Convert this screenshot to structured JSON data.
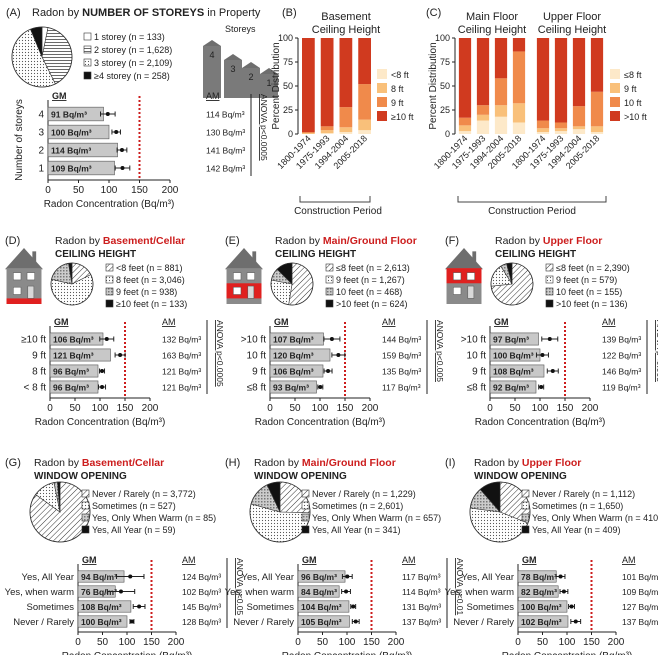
{
  "colors": {
    "red": "#cc1d1d",
    "gm_bar": "#c8c8c8",
    "house": "#6e6e6e",
    "refline": "#cc1d1d"
  },
  "panelA": {
    "label": "(A)",
    "title_pre": "Radon by ",
    "title_bold": "NUMBER OF STOREYS",
    "title_post": " in Property",
    "storeys_label": "Storeys",
    "legend": [
      "1 storey (n = 133)",
      "2 storey (n = 1,628)",
      "3 storey (n = 2,109)",
      "≥4 storey (n = 258)"
    ],
    "pie": [
      133,
      1628,
      2109,
      258
    ],
    "gm_header": "GM",
    "am_header": "AM",
    "anova": "ANOVA p<0.0005",
    "ylabel": "Number of storeys",
    "xlabel": "Radon Concentration (Bq/m³)",
    "ticks": [
      "0",
      "50",
      "100",
      "150",
      "200"
    ],
    "rows": [
      {
        "cat": "4",
        "gm": 91,
        "gm_label": "91 Bq/m³",
        "am": "114 Bq/m³",
        "err": 12
      },
      {
        "cat": "3",
        "gm": 100,
        "gm_label": "100 Bq/m³",
        "am": "130 Bq/m³",
        "err": 7
      },
      {
        "cat": "2",
        "gm": 114,
        "gm_label": "114 Bq/m³",
        "am": "141 Bq/m³",
        "err": 8
      },
      {
        "cat": "1",
        "gm": 109,
        "gm_label": "109 Bq/m³",
        "am": "142 Bq/m³",
        "err": 12
      }
    ]
  },
  "chart_data": [
    {
      "type": "bar",
      "panel": "B",
      "title": "Basement Ceiling Height",
      "label": "(B)",
      "ylabel": "Percent Distribution",
      "xlabel": "Construction Period",
      "ylim": [
        0,
        100
      ],
      "yticks": [
        "0",
        "25",
        "50",
        "75",
        "100"
      ],
      "categories": [
        "1800-1974",
        "1975-1993",
        "1994-2004",
        "2005-2018"
      ],
      "series": [
        {
          "name": "≥10 ft",
          "values": [
            0,
            1,
            2,
            4
          ]
        },
        {
          "name": "9 ft",
          "values": [
            1,
            3,
            5,
            11
          ]
        },
        {
          "name": "8 ft",
          "values": [
            1,
            4,
            21,
            37
          ]
        },
        {
          "name": "<8 ft",
          "values": [
            98,
            92,
            72,
            48
          ]
        }
      ]
    },
    {
      "type": "bar",
      "panel": "C",
      "label": "(C)",
      "ylabel": "Percent Distribution",
      "xlabel": "Construction Period",
      "ylim": [
        0,
        100
      ],
      "yticks": [
        "0",
        "25",
        "50",
        "75",
        "100"
      ],
      "groups": [
        "Main Floor Ceiling Height",
        "Upper Floor Ceiling Height"
      ],
      "categories": [
        "1800-1974",
        "1975-1993",
        "1994-2004",
        "2005-2018"
      ],
      "series": [
        {
          "name": ">10 ft",
          "values": [
            3,
            14,
            18,
            12
          ],
          "values_upper": [
            2,
            3,
            5,
            2
          ]
        },
        {
          "name": "10 ft",
          "values": [
            6,
            6,
            12,
            20
          ],
          "values_upper": [
            4,
            3,
            3,
            6
          ]
        },
        {
          "name": "9 ft",
          "values": [
            8,
            10,
            28,
            54
          ],
          "values_upper": [
            8,
            6,
            21,
            36
          ]
        },
        {
          "name": "≤8 ft",
          "values": [
            83,
            70,
            42,
            14
          ],
          "values_upper": [
            86,
            88,
            71,
            56
          ]
        }
      ]
    },
    {
      "type": "bar",
      "panel": "D",
      "orientation": "horizontal",
      "title": "Radon by Basement/Cellar CEILING HEIGHT",
      "xlabel": "Radon Concentration (Bq/m³)",
      "xlim": [
        0,
        200
      ],
      "categories": [
        "≥10 ft",
        "9 ft",
        "8 ft",
        "< 8 ft"
      ],
      "values": [
        106,
        121,
        96,
        96
      ],
      "am": [
        132,
        163,
        121,
        121
      ]
    },
    {
      "type": "bar",
      "panel": "E",
      "orientation": "horizontal",
      "title": "Radon by Main/Ground Floor CEILING HEIGHT",
      "xlabel": "Radon Concentration (Bq/m³)",
      "xlim": [
        0,
        200
      ],
      "categories": [
        ">10 ft",
        "10 ft",
        "9 ft",
        "≤8 ft"
      ],
      "values": [
        107,
        120,
        106,
        93
      ],
      "am": [
        144,
        159,
        135,
        117
      ]
    },
    {
      "type": "bar",
      "panel": "F",
      "orientation": "horizontal",
      "title": "Radon by Upper Floor CEILING HEIGHT",
      "xlabel": "Radon Concentration (Bq/m³)",
      "xlim": [
        0,
        200
      ],
      "categories": [
        ">10 ft",
        "10 ft",
        "9 ft",
        "≤8 ft"
      ],
      "values": [
        97,
        100,
        108,
        92
      ],
      "am": [
        139,
        122,
        146,
        119
      ]
    },
    {
      "type": "bar",
      "panel": "G",
      "orientation": "horizontal",
      "title": "Radon by Basement/Cellar WINDOW OPENING",
      "xlabel": "Radon Concentration (Bq/m³)",
      "xlim": [
        0,
        200
      ],
      "categories": [
        "Yes, All Year",
        "Yes, when warm",
        "Sometimes",
        "Never / Rarely"
      ],
      "values": [
        94,
        76,
        108,
        100
      ],
      "am": [
        124,
        102,
        145,
        128
      ]
    },
    {
      "type": "bar",
      "panel": "H",
      "orientation": "horizontal",
      "title": "Radon by Main/Ground Floor WINDOW OPENING",
      "xlabel": "Radon Concentration (Bq/m³)",
      "xlim": [
        0,
        200
      ],
      "categories": [
        "Yes, All Year",
        "Yes, when warm",
        "Sometimes",
        "Never / Rarely"
      ],
      "values": [
        96,
        84,
        104,
        105
      ],
      "am": [
        117,
        114,
        131,
        137
      ]
    },
    {
      "type": "bar",
      "panel": "I",
      "orientation": "horizontal",
      "title": "Radon by Upper Floor WINDOW OPENING",
      "xlabel": "Radon Concentration (Bq/m³)",
      "xlim": [
        0,
        200
      ],
      "categories": [
        "Yes, All Year",
        "Yes, when warm",
        "Sometimes",
        "Never / Rarely"
      ],
      "values": [
        78,
        82,
        100,
        102
      ],
      "am": [
        101,
        109,
        127,
        137
      ]
    }
  ],
  "panelBC": {
    "B_label": "(B)",
    "B_title1": "Basement",
    "B_title2": "Ceiling Height",
    "C_label": "(C)",
    "C_title_main1": "Main Floor",
    "C_title_main2": "Ceiling Height",
    "C_title_up1": "Upper Floor",
    "C_title_up2": "Ceiling Height",
    "ylabel": "Percent Distribution",
    "xlabel": "Construction Period",
    "B_legend": [
      "<8 ft",
      "8 ft",
      "9 ft",
      "≥10 ft"
    ],
    "C_legend": [
      "≤8 ft",
      "9 ft",
      "10 ft",
      ">10 ft"
    ],
    "series_colors": [
      "#fde9c9",
      "#f9c07a",
      "#f08a4b",
      "#d03a1f"
    ]
  },
  "rows_panels": [
    {
      "id": "D",
      "label": "(D)",
      "title_pre": "Radon by ",
      "title_red": "Basement/Cellar",
      "subtitle": "CEILING HEIGHT",
      "highlight": "basement",
      "legend": [
        "<8 feet (n = 881)",
        "8 feet (n = 3,046)",
        "9 feet (n = 938)",
        "≥10 feet (n = 133)"
      ],
      "pie": [
        881,
        3046,
        938,
        133
      ],
      "gm_header": "GM",
      "am_header": "AM",
      "anova": "ANOVA p<0.0005",
      "xlabel": "Radon Concentration (Bq/m³)",
      "ticks": [
        "0",
        "50",
        "100",
        "150",
        "200"
      ],
      "rows": [
        {
          "cat": "≥10 ft",
          "gm": 106,
          "gm_label": "106 Bq/m³",
          "am": "132 Bq/m³",
          "err": 14
        },
        {
          "cat": "9 ft",
          "gm": 121,
          "gm_label": "121 Bq/m³",
          "am": "163 Bq/m³",
          "err": 10
        },
        {
          "cat": "8 ft",
          "gm": 96,
          "gm_label": "96 Bq/m³",
          "am": "121 Bq/m³",
          "err": 5
        },
        {
          "cat": "< 8 ft",
          "gm": 96,
          "gm_label": "96 Bq/m³",
          "am": "121 Bq/m³",
          "err": 7
        }
      ]
    },
    {
      "id": "E",
      "label": "(E)",
      "title_pre": "Radon by ",
      "title_red": "Main/Ground Floor",
      "subtitle": "CEILING HEIGHT",
      "highlight": "main",
      "legend": [
        "≤8 feet (n = 2,613)",
        "9 feet (n = 1,267)",
        "10 feet (n = 468)",
        ">10 feet (n = 624)"
      ],
      "pie": [
        2613,
        1267,
        468,
        624
      ],
      "gm_header": "GM",
      "am_header": "AM",
      "anova": "ANOVA p<0.005",
      "xlabel": "Radon Concentration (Bq/m³)",
      "ticks": [
        "0",
        "50",
        "100",
        "150",
        "200"
      ],
      "rows": [
        {
          "cat": ">10 ft",
          "gm": 107,
          "gm_label": "107 Bq/m³",
          "am": "144 Bq/m³",
          "err": 16
        },
        {
          "cat": "10 ft",
          "gm": 120,
          "gm_label": "120 Bq/m³",
          "am": "159 Bq/m³",
          "err": 13
        },
        {
          "cat": "9 ft",
          "gm": 106,
          "gm_label": "106 Bq/m³",
          "am": "135 Bq/m³",
          "err": 8
        },
        {
          "cat": "≤8 ft",
          "gm": 93,
          "gm_label": "93 Bq/m³",
          "am": "117 Bq/m³",
          "err": 5
        }
      ]
    },
    {
      "id": "F",
      "label": "(F)",
      "title_pre": "Radon by ",
      "title_red": "Upper Floor",
      "subtitle": "CEILING HEIGHT",
      "highlight": "upper",
      "legend": [
        "≤8 feet (n = 2,390)",
        "9 feet (n = 579)",
        "10 feet (n = 155)",
        ">10 feet (n = 136)"
      ],
      "pie": [
        2390,
        579,
        155,
        136
      ],
      "gm_header": "GM",
      "am_header": "AM",
      "anova": "ANOVA p<0.005",
      "xlabel": "Radon Concentration (Bq/m³)",
      "ticks": [
        "0",
        "50",
        "100",
        "150",
        "200"
      ],
      "rows": [
        {
          "cat": ">10 ft",
          "gm": 97,
          "gm_label": "97 Bq/m³",
          "am": "139 Bq/m³",
          "err": 16
        },
        {
          "cat": "10 ft",
          "gm": 100,
          "gm_label": "100 Bq/m³",
          "am": "122 Bq/m³",
          "err": 12
        },
        {
          "cat": "9 ft",
          "gm": 108,
          "gm_label": "108 Bq/m³",
          "am": "146 Bq/m³",
          "err": 11
        },
        {
          "cat": "≤8 ft",
          "gm": 92,
          "gm_label": "92 Bq/m³",
          "am": "119 Bq/m³",
          "err": 5
        }
      ]
    },
    {
      "id": "G",
      "label": "(G)",
      "title_pre": "Radon by ",
      "title_red": "Basement/Cellar",
      "subtitle": "WINDOW OPENING",
      "legend": [
        "Never / Rarely (n = 3,772)",
        "Sometimes (n = 527)",
        "Yes, Only When Warm (n = 85)",
        "Yes, All Year (n = 59)"
      ],
      "pie": [
        3772,
        527,
        85,
        59
      ],
      "gm_header": "GM",
      "am_header": "AM",
      "anova": "ANOVA p<0.05",
      "xlabel": "Radon Concentration (Bq/m³)",
      "ticks": [
        "0",
        "50",
        "100",
        "150",
        "200"
      ],
      "rows": [
        {
          "cat": "Yes, All Year",
          "gm": 94,
          "gm_label": "94 Bq/m³",
          "am": "124 Bq/m³",
          "err": 28
        },
        {
          "cat": "Yes, when warm",
          "gm": 76,
          "gm_label": "76 Bq/m³",
          "am": "102 Bq/m³",
          "err": 28
        },
        {
          "cat": "Sometimes",
          "gm": 108,
          "gm_label": "108 Bq/m³",
          "am": "145 Bq/m³",
          "err": 12
        },
        {
          "cat": "Never / Rarely",
          "gm": 100,
          "gm_label": "100 Bq/m³",
          "am": "128 Bq/m³",
          "err": 4
        }
      ]
    },
    {
      "id": "H",
      "label": "(H)",
      "title_pre": "Radon by ",
      "title_red": "Main/Ground  Floor",
      "subtitle": "WINDOW OPENING",
      "legend": [
        "Never / Rarely (n = 1,229)",
        "Sometimes (n = 2,601)",
        "Yes, Only When Warm (n = 657)",
        "Yes, All Year (n = 341)"
      ],
      "pie": [
        1229,
        2601,
        657,
        341
      ],
      "gm_header": "GM",
      "am_header": "AM",
      "anova": "ANOVA p<0.01",
      "xlabel": "Radon Concentration (Bq/m³)",
      "ticks": [
        "0",
        "50",
        "100",
        "150",
        "200"
      ],
      "rows": [
        {
          "cat": "Yes, All Year",
          "gm": 96,
          "gm_label": "96 Bq/m³",
          "am": "117 Bq/m³",
          "err": 10
        },
        {
          "cat": "Yes, when warm",
          "gm": 84,
          "gm_label": "84 Bq/m³",
          "am": "114 Bq/m³",
          "err": 9
        },
        {
          "cat": "Sometimes",
          "gm": 104,
          "gm_label": "104 Bq/m³",
          "am": "131 Bq/m³",
          "err": 5
        },
        {
          "cat": "Never / Rarely",
          "gm": 105,
          "gm_label": "105 Bq/m³",
          "am": "137 Bq/m³",
          "err": 7
        }
      ]
    },
    {
      "id": "I",
      "label": "(I)",
      "title_pre": "Radon by ",
      "title_red": "Upper Floor",
      "subtitle": "WINDOW OPENING",
      "legend": [
        "Never / Rarely (n = 1,112)",
        "Sometimes (n = 1,650)",
        "Yes, Only When Warm (n = 410)",
        "Yes, All Year (n = 409)"
      ],
      "pie": [
        1112,
        1650,
        410,
        409
      ],
      "gm_header": "GM",
      "am_header": "AM",
      "anova": "ANOVA p<0.005",
      "xlabel": "Radon Concentration (Bq/m³)",
      "ticks": [
        "0",
        "50",
        "100",
        "150",
        "200"
      ],
      "rows": [
        {
          "cat": "Yes, All Year",
          "gm": 78,
          "gm_label": "78 Bq/m³",
          "am": "101 Bq/m³",
          "err": 9
        },
        {
          "cat": "Yes, when warm",
          "gm": 82,
          "gm_label": "82 Bq/m³",
          "am": "109 Bq/m³",
          "err": 8
        },
        {
          "cat": "Sometimes",
          "gm": 100,
          "gm_label": "100 Bq/m³",
          "am": "127 Bq/m³",
          "err": 6
        },
        {
          "cat": "Never / Rarely",
          "gm": 102,
          "gm_label": "102 Bq/m³",
          "am": "137 Bq/m³",
          "err": 10
        }
      ]
    }
  ]
}
